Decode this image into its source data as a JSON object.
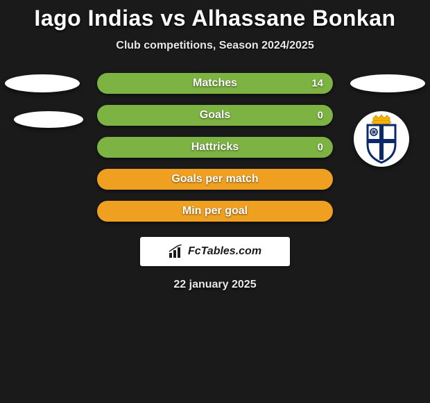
{
  "title": "Iago Indias vs Alhassane Bonkan",
  "subtitle": "Club competitions, Season 2024/2025",
  "bars": [
    {
      "label": "Matches",
      "value": "14",
      "color": "#7cb342",
      "show_value": true
    },
    {
      "label": "Goals",
      "value": "0",
      "color": "#7cb342",
      "show_value": true
    },
    {
      "label": "Hattricks",
      "value": "0",
      "color": "#7cb342",
      "show_value": true
    },
    {
      "label": "Goals per match",
      "value": "",
      "color": "#f0a020",
      "show_value": false
    },
    {
      "label": "Min per goal",
      "value": "",
      "color": "#f0a020",
      "show_value": false
    }
  ],
  "branding": "FcTables.com",
  "date": "22 january 2025",
  "badge": {
    "crown_color": "#f2b400",
    "shield_fill": "#ffffff",
    "shield_border": "#0a2a6b",
    "cross_color": "#0a2a6b"
  },
  "colors": {
    "background": "#1a1a1a",
    "ellipse": "#ffffff"
  }
}
